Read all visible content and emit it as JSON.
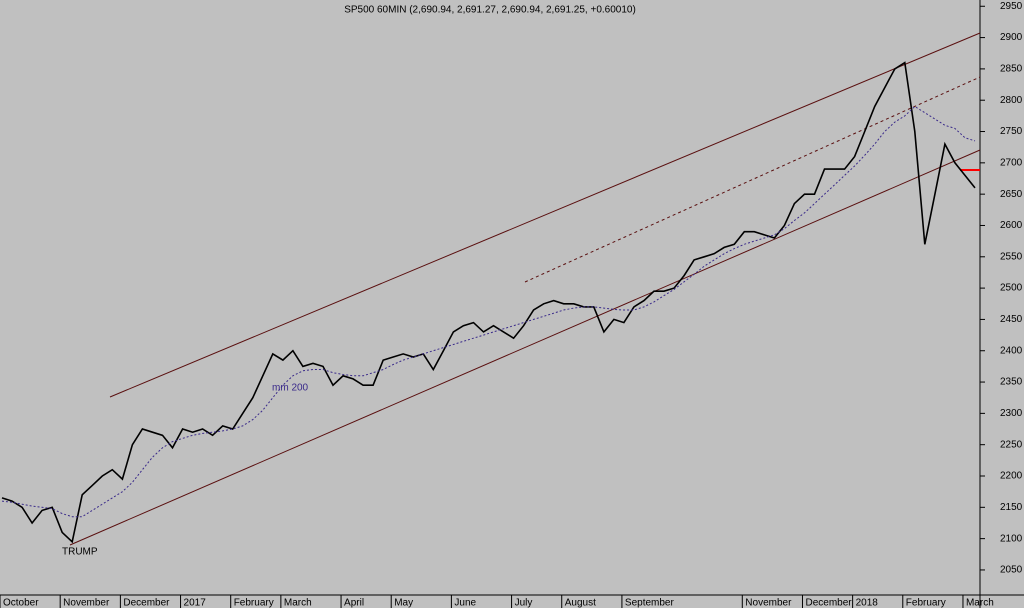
{
  "chart_data": {
    "type": "line",
    "title": "SP500 60MIN (2,690.94, 2,691.27, 2,690.94, 2,691.25, +0.60010)",
    "annotations": [
      "TRUMP"
    ],
    "categories": [
      "October",
      null,
      null,
      null,
      null,
      null,
      "November",
      null,
      null,
      null,
      null,
      null,
      "December",
      null,
      null,
      null,
      null,
      null,
      "2017",
      null,
      null,
      null,
      null,
      "February",
      null,
      null,
      null,
      null,
      "March",
      null,
      null,
      null,
      null,
      null,
      "April",
      null,
      null,
      null,
      null,
      "May",
      null,
      null,
      null,
      null,
      null,
      "June",
      null,
      null,
      null,
      null,
      null,
      "July",
      null,
      null,
      null,
      null,
      "August",
      null,
      null,
      null,
      null,
      null,
      "September",
      null,
      null,
      null,
      null,
      null,
      null,
      null,
      null,
      null,
      null,
      null,
      "November",
      null,
      null,
      null,
      null,
      null,
      "December",
      null,
      null,
      null,
      null,
      "2018",
      null,
      null,
      null,
      null,
      "February",
      null,
      null,
      null,
      null,
      null,
      "March",
      null
    ],
    "series": [
      {
        "name": "SP500",
        "color": "#000000",
        "values": [
          2165,
          2160,
          2150,
          2125,
          2145,
          2150,
          2110,
          2095,
          2170,
          2185,
          2200,
          2210,
          2195,
          2250,
          2275,
          2270,
          2265,
          2245,
          2275,
          2270,
          2275,
          2265,
          2280,
          2275,
          2300,
          2325,
          2360,
          2395,
          2385,
          2400,
          2375,
          2380,
          2375,
          2345,
          2360,
          2355,
          2345,
          2345,
          2385,
          2390,
          2395,
          2390,
          2395,
          2370,
          2400,
          2430,
          2440,
          2445,
          2430,
          2440,
          2430,
          2420,
          2440,
          2465,
          2475,
          2480,
          2475,
          2475,
          2470,
          2470,
          2430,
          2450,
          2445,
          2470,
          2480,
          2495,
          2495,
          2500,
          2520,
          2545,
          2550,
          2555,
          2565,
          2570,
          2590,
          2590,
          2585,
          2580,
          2600,
          2635,
          2650,
          2650,
          2690,
          2690,
          2690,
          2710,
          2750,
          2790,
          2820,
          2850,
          2860,
          2750,
          2570,
          2650,
          2730,
          2700,
          2680,
          2660
        ]
      },
      {
        "name": "mm 200",
        "color": "#3a2a8a",
        "values": [
          2160,
          2158,
          2155,
          2152,
          2150,
          2148,
          2140,
          2135,
          2135,
          2145,
          2155,
          2165,
          2175,
          2190,
          2210,
          2230,
          2245,
          2255,
          2260,
          2265,
          2268,
          2270,
          2272,
          2275,
          2280,
          2290,
          2305,
          2325,
          2345,
          2360,
          2368,
          2370,
          2370,
          2365,
          2362,
          2360,
          2360,
          2365,
          2370,
          2378,
          2385,
          2390,
          2395,
          2400,
          2405,
          2410,
          2415,
          2420,
          2425,
          2430,
          2435,
          2440,
          2445,
          2450,
          2455,
          2460,
          2465,
          2468,
          2470,
          2470,
          2468,
          2466,
          2465,
          2465,
          2470,
          2478,
          2488,
          2498,
          2510,
          2522,
          2535,
          2545,
          2555,
          2563,
          2570,
          2575,
          2580,
          2585,
          2595,
          2608,
          2620,
          2635,
          2650,
          2665,
          2680,
          2695,
          2712,
          2730,
          2750,
          2765,
          2775,
          2790,
          2780,
          2770,
          2760,
          2755,
          2740,
          2735
        ]
      }
    ],
    "ylim": [
      2010,
      2960
    ],
    "yticks": [
      2050,
      2100,
      2150,
      2200,
      2250,
      2300,
      2350,
      2400,
      2450,
      2500,
      2550,
      2600,
      2650,
      2700,
      2750,
      2800,
      2850,
      2900,
      2950
    ]
  }
}
